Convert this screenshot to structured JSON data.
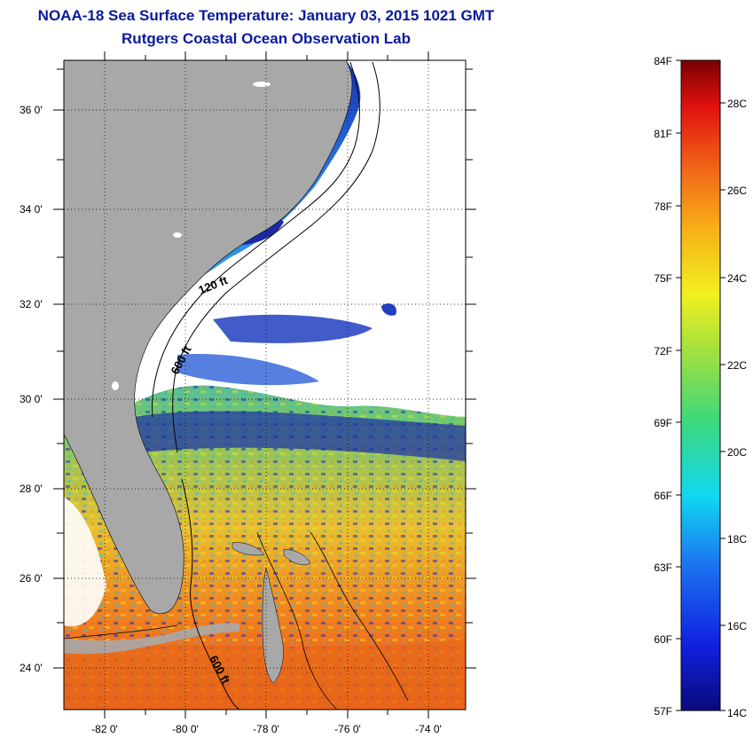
{
  "header": {
    "title": "NOAA-18 Sea Surface Temperature:  January 03, 2015 1021 GMT",
    "subtitle": "Rutgers Coastal Ocean Observation Lab"
  },
  "map": {
    "lat_range": [
      23,
      37
    ],
    "lon_range": [
      -83,
      -73
    ],
    "lat_labels": [
      "24 0'",
      "26 0'",
      "28 0'",
      "30 0'",
      "32 0'",
      "34 0'",
      "36 0'"
    ],
    "lat_values": [
      24,
      26,
      28,
      30,
      32,
      34,
      36
    ],
    "lon_labels": [
      "-82 0'",
      "-80 0'",
      "-78 0'",
      "-76 0'",
      "-74 0'"
    ],
    "lon_values": [
      -82,
      -80,
      -78,
      -76,
      -74
    ],
    "contour_labels": [
      "120 ft",
      "600 ft",
      "600 ft"
    ],
    "colors": {
      "land": "#a8a8a8",
      "cloud": "#ffffff",
      "cold": "#1a22a8",
      "warm": "#e06010"
    }
  },
  "colorbar": {
    "f_labels": [
      "84F",
      "81F",
      "78F",
      "75F",
      "72F",
      "69F",
      "66F",
      "63F",
      "60F",
      "57F"
    ],
    "c_labels": [
      "28C",
      "26C",
      "24C",
      "22C",
      "20C",
      "18C",
      "16C",
      "14C"
    ],
    "range_c": [
      14,
      29
    ]
  }
}
